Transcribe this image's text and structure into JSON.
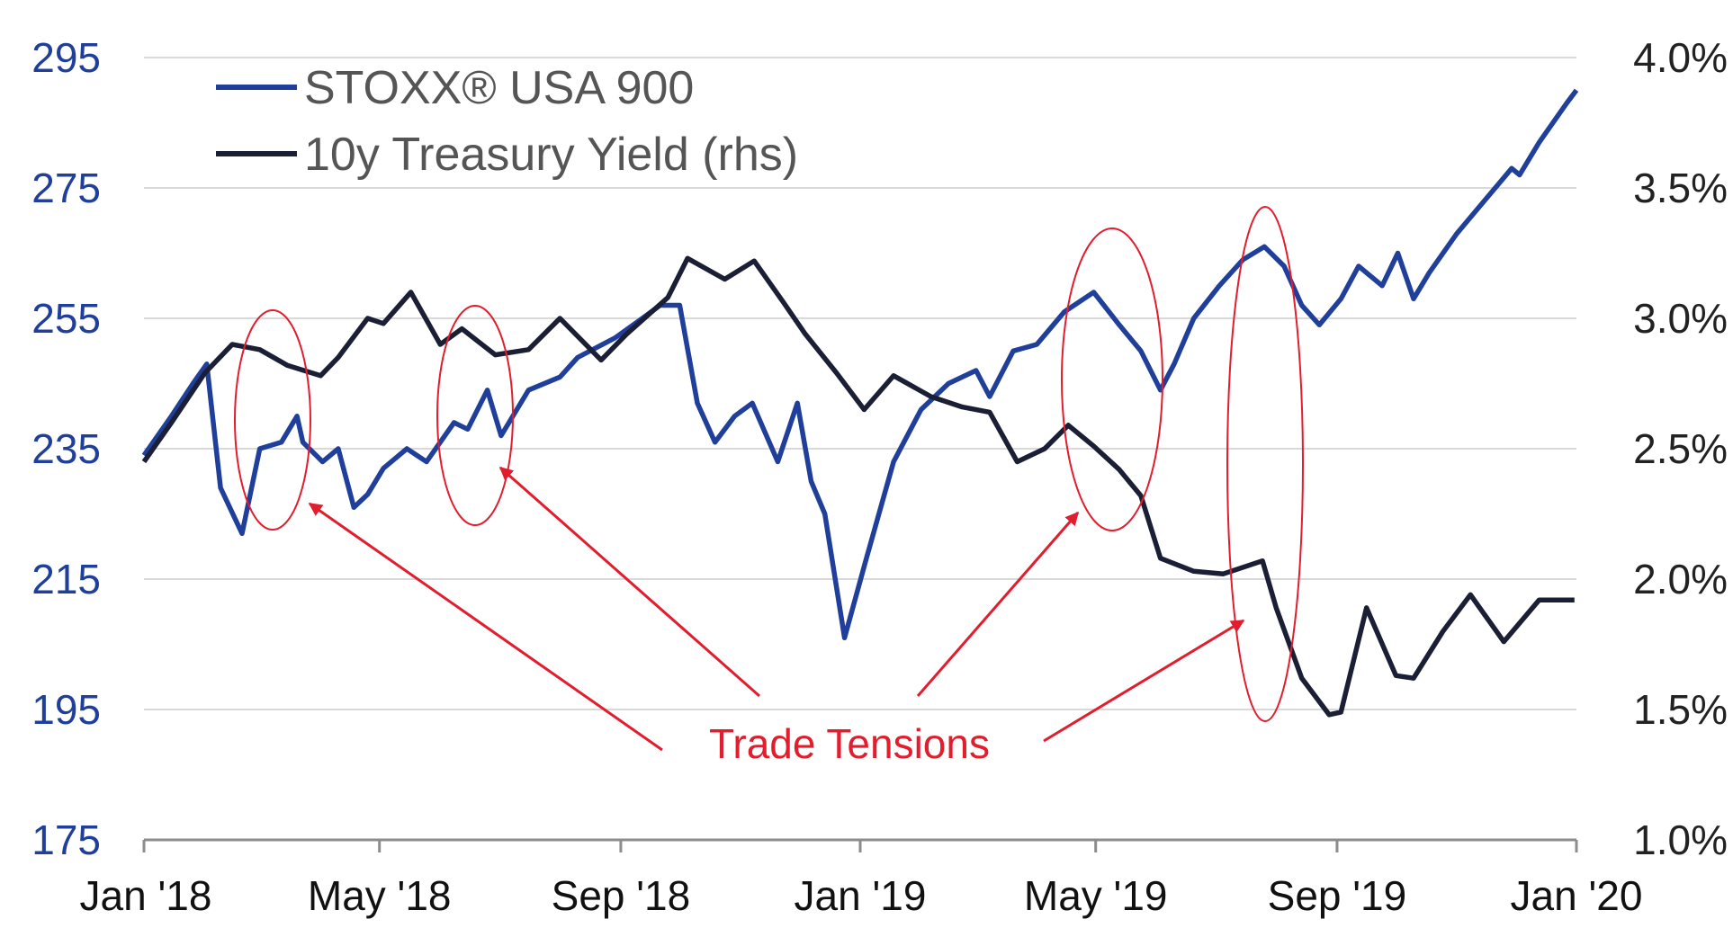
{
  "chart_data": {
    "type": "line",
    "title": "",
    "x_ticks": [
      "Jan '18",
      "May '18",
      "Sep '18",
      "Jan '19",
      "May '19",
      "Sep '19",
      "Jan '20"
    ],
    "x_range": [
      "2018-01-01",
      "2020-01-01"
    ],
    "y_left": {
      "ticks": [
        "295",
        "275",
        "255",
        "235",
        "215",
        "195",
        "175"
      ],
      "ylim": [
        175,
        295
      ]
    },
    "y_right": {
      "ticks": [
        "4.0%",
        "3.5%",
        "3.0%",
        "2.5%",
        "2.0%",
        "1.5%",
        "1.0%"
      ],
      "ylim": [
        1.0,
        4.0
      ]
    },
    "grid": "horizontal",
    "legend_position": "top-left",
    "series": [
      {
        "name": "STOXX® USA 900",
        "axis": "left",
        "color": "#1f3f9a",
        "x": [
          "2018-01-01",
          "2018-01-15",
          "2018-01-26",
          "2018-02-02",
          "2018-02-09",
          "2018-02-20",
          "2018-03-01",
          "2018-03-12",
          "2018-03-20",
          "2018-03-23",
          "2018-04-02",
          "2018-04-10",
          "2018-04-18",
          "2018-04-25",
          "2018-05-03",
          "2018-05-15",
          "2018-05-25",
          "2018-06-08",
          "2018-06-15",
          "2018-06-25",
          "2018-07-02",
          "2018-07-16",
          "2018-08-01",
          "2018-08-10",
          "2018-08-29",
          "2018-09-12",
          "2018-09-21",
          "2018-10-01",
          "2018-10-10",
          "2018-10-19",
          "2018-10-29",
          "2018-11-07",
          "2018-11-20",
          "2018-11-30",
          "2018-12-07",
          "2018-12-14",
          "2018-12-24",
          "2019-01-04",
          "2019-01-18",
          "2019-02-01",
          "2019-02-15",
          "2019-03-01",
          "2019-03-08",
          "2019-03-20",
          "2019-04-01",
          "2019-04-15",
          "2019-04-30",
          "2019-05-13",
          "2019-05-24",
          "2019-06-03",
          "2019-06-10",
          "2019-06-20",
          "2019-07-03",
          "2019-07-15",
          "2019-07-26",
          "2019-08-05",
          "2019-08-14",
          "2019-08-23",
          "2019-09-03",
          "2019-09-12",
          "2019-09-24",
          "2019-10-02",
          "2019-10-10",
          "2019-10-18",
          "2019-11-01",
          "2019-11-15",
          "2019-11-29",
          "2019-12-03",
          "2019-12-13",
          "2019-12-27",
          "2020-01-01"
        ],
        "values": [
          234,
          240,
          245,
          248,
          229,
          222,
          235,
          236,
          240,
          236,
          233,
          235,
          226,
          228,
          232,
          235,
          233,
          239,
          238,
          244,
          237,
          244,
          246,
          249,
          252,
          255,
          257,
          257,
          242,
          236,
          240,
          242,
          233,
          242,
          230,
          225,
          206,
          218,
          233,
          241,
          245,
          247,
          243,
          250,
          251,
          256,
          259,
          254,
          250,
          244,
          248,
          255,
          260,
          264,
          266,
          263,
          257,
          254,
          258,
          263,
          260,
          265,
          258,
          262,
          268,
          273,
          278,
          277,
          282,
          288,
          290
        ]
      },
      {
        "name": "10y Treasury Yield (rhs)",
        "axis": "right",
        "color": "#1b1f36",
        "x": [
          "2018-01-01",
          "2018-01-15",
          "2018-02-01",
          "2018-02-15",
          "2018-03-01",
          "2018-03-15",
          "2018-04-01",
          "2018-04-10",
          "2018-04-25",
          "2018-05-03",
          "2018-05-17",
          "2018-06-01",
          "2018-06-12",
          "2018-06-29",
          "2018-07-16",
          "2018-08-01",
          "2018-08-22",
          "2018-09-04",
          "2018-09-25",
          "2018-10-05",
          "2018-10-24",
          "2018-11-08",
          "2018-11-23",
          "2018-12-04",
          "2018-12-20",
          "2019-01-03",
          "2019-01-18",
          "2019-02-06",
          "2019-02-22",
          "2019-03-08",
          "2019-03-22",
          "2019-04-05",
          "2019-04-17",
          "2019-04-30",
          "2019-05-13",
          "2019-05-24",
          "2019-06-03",
          "2019-06-20",
          "2019-07-05",
          "2019-07-25",
          "2019-08-01",
          "2019-08-14",
          "2019-08-28",
          "2019-09-03",
          "2019-09-16",
          "2019-10-01",
          "2019-10-10",
          "2019-10-25",
          "2019-11-08",
          "2019-11-25",
          "2019-12-13",
          "2019-12-31"
        ],
        "values": [
          2.45,
          2.6,
          2.79,
          2.9,
          2.88,
          2.82,
          2.78,
          2.85,
          3.0,
          2.98,
          3.1,
          2.9,
          2.96,
          2.86,
          2.88,
          3.0,
          2.84,
          2.94,
          3.08,
          3.23,
          3.15,
          3.22,
          3.06,
          2.94,
          2.79,
          2.65,
          2.78,
          2.7,
          2.66,
          2.64,
          2.45,
          2.5,
          2.59,
          2.51,
          2.42,
          2.32,
          2.08,
          2.03,
          2.02,
          2.07,
          1.89,
          1.62,
          1.48,
          1.49,
          1.89,
          1.63,
          1.62,
          1.8,
          1.94,
          1.76,
          1.92,
          1.92
        ]
      }
    ],
    "annotations": [
      {
        "label": "Trade Tensions",
        "color": "#e11d2e"
      }
    ]
  }
}
